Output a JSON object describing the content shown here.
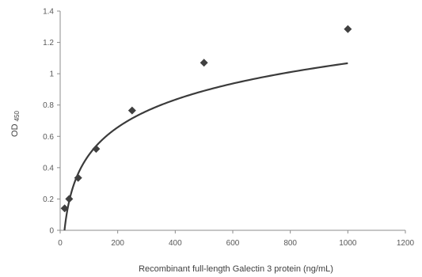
{
  "chart_data": {
    "type": "scatter",
    "title": "",
    "xlabel": "Recombinant full-length Galectin 3 protein (ng/mL)",
    "ylabel_main": "OD",
    "ylabel_sub": "450",
    "xlim": [
      0,
      1200
    ],
    "ylim": [
      0,
      1.4
    ],
    "xticks": [
      0,
      200,
      400,
      600,
      800,
      1000,
      1200
    ],
    "yticks": [
      0,
      0.2,
      0.4,
      0.6,
      0.8,
      1,
      1.2,
      1.4
    ],
    "grid": false,
    "legend": "none",
    "marker": "diamond",
    "series": [
      {
        "x": [
          15.6,
          31.25,
          62.5,
          125,
          250,
          500,
          1000
        ],
        "y": [
          0.14,
          0.2,
          0.335,
          0.52,
          0.765,
          1.07,
          1.285
        ]
      }
    ],
    "trendline": {
      "type": "logarithmic",
      "a": 0.2542,
      "b": 0.539,
      "x_range": [
        15,
        1000
      ]
    }
  }
}
